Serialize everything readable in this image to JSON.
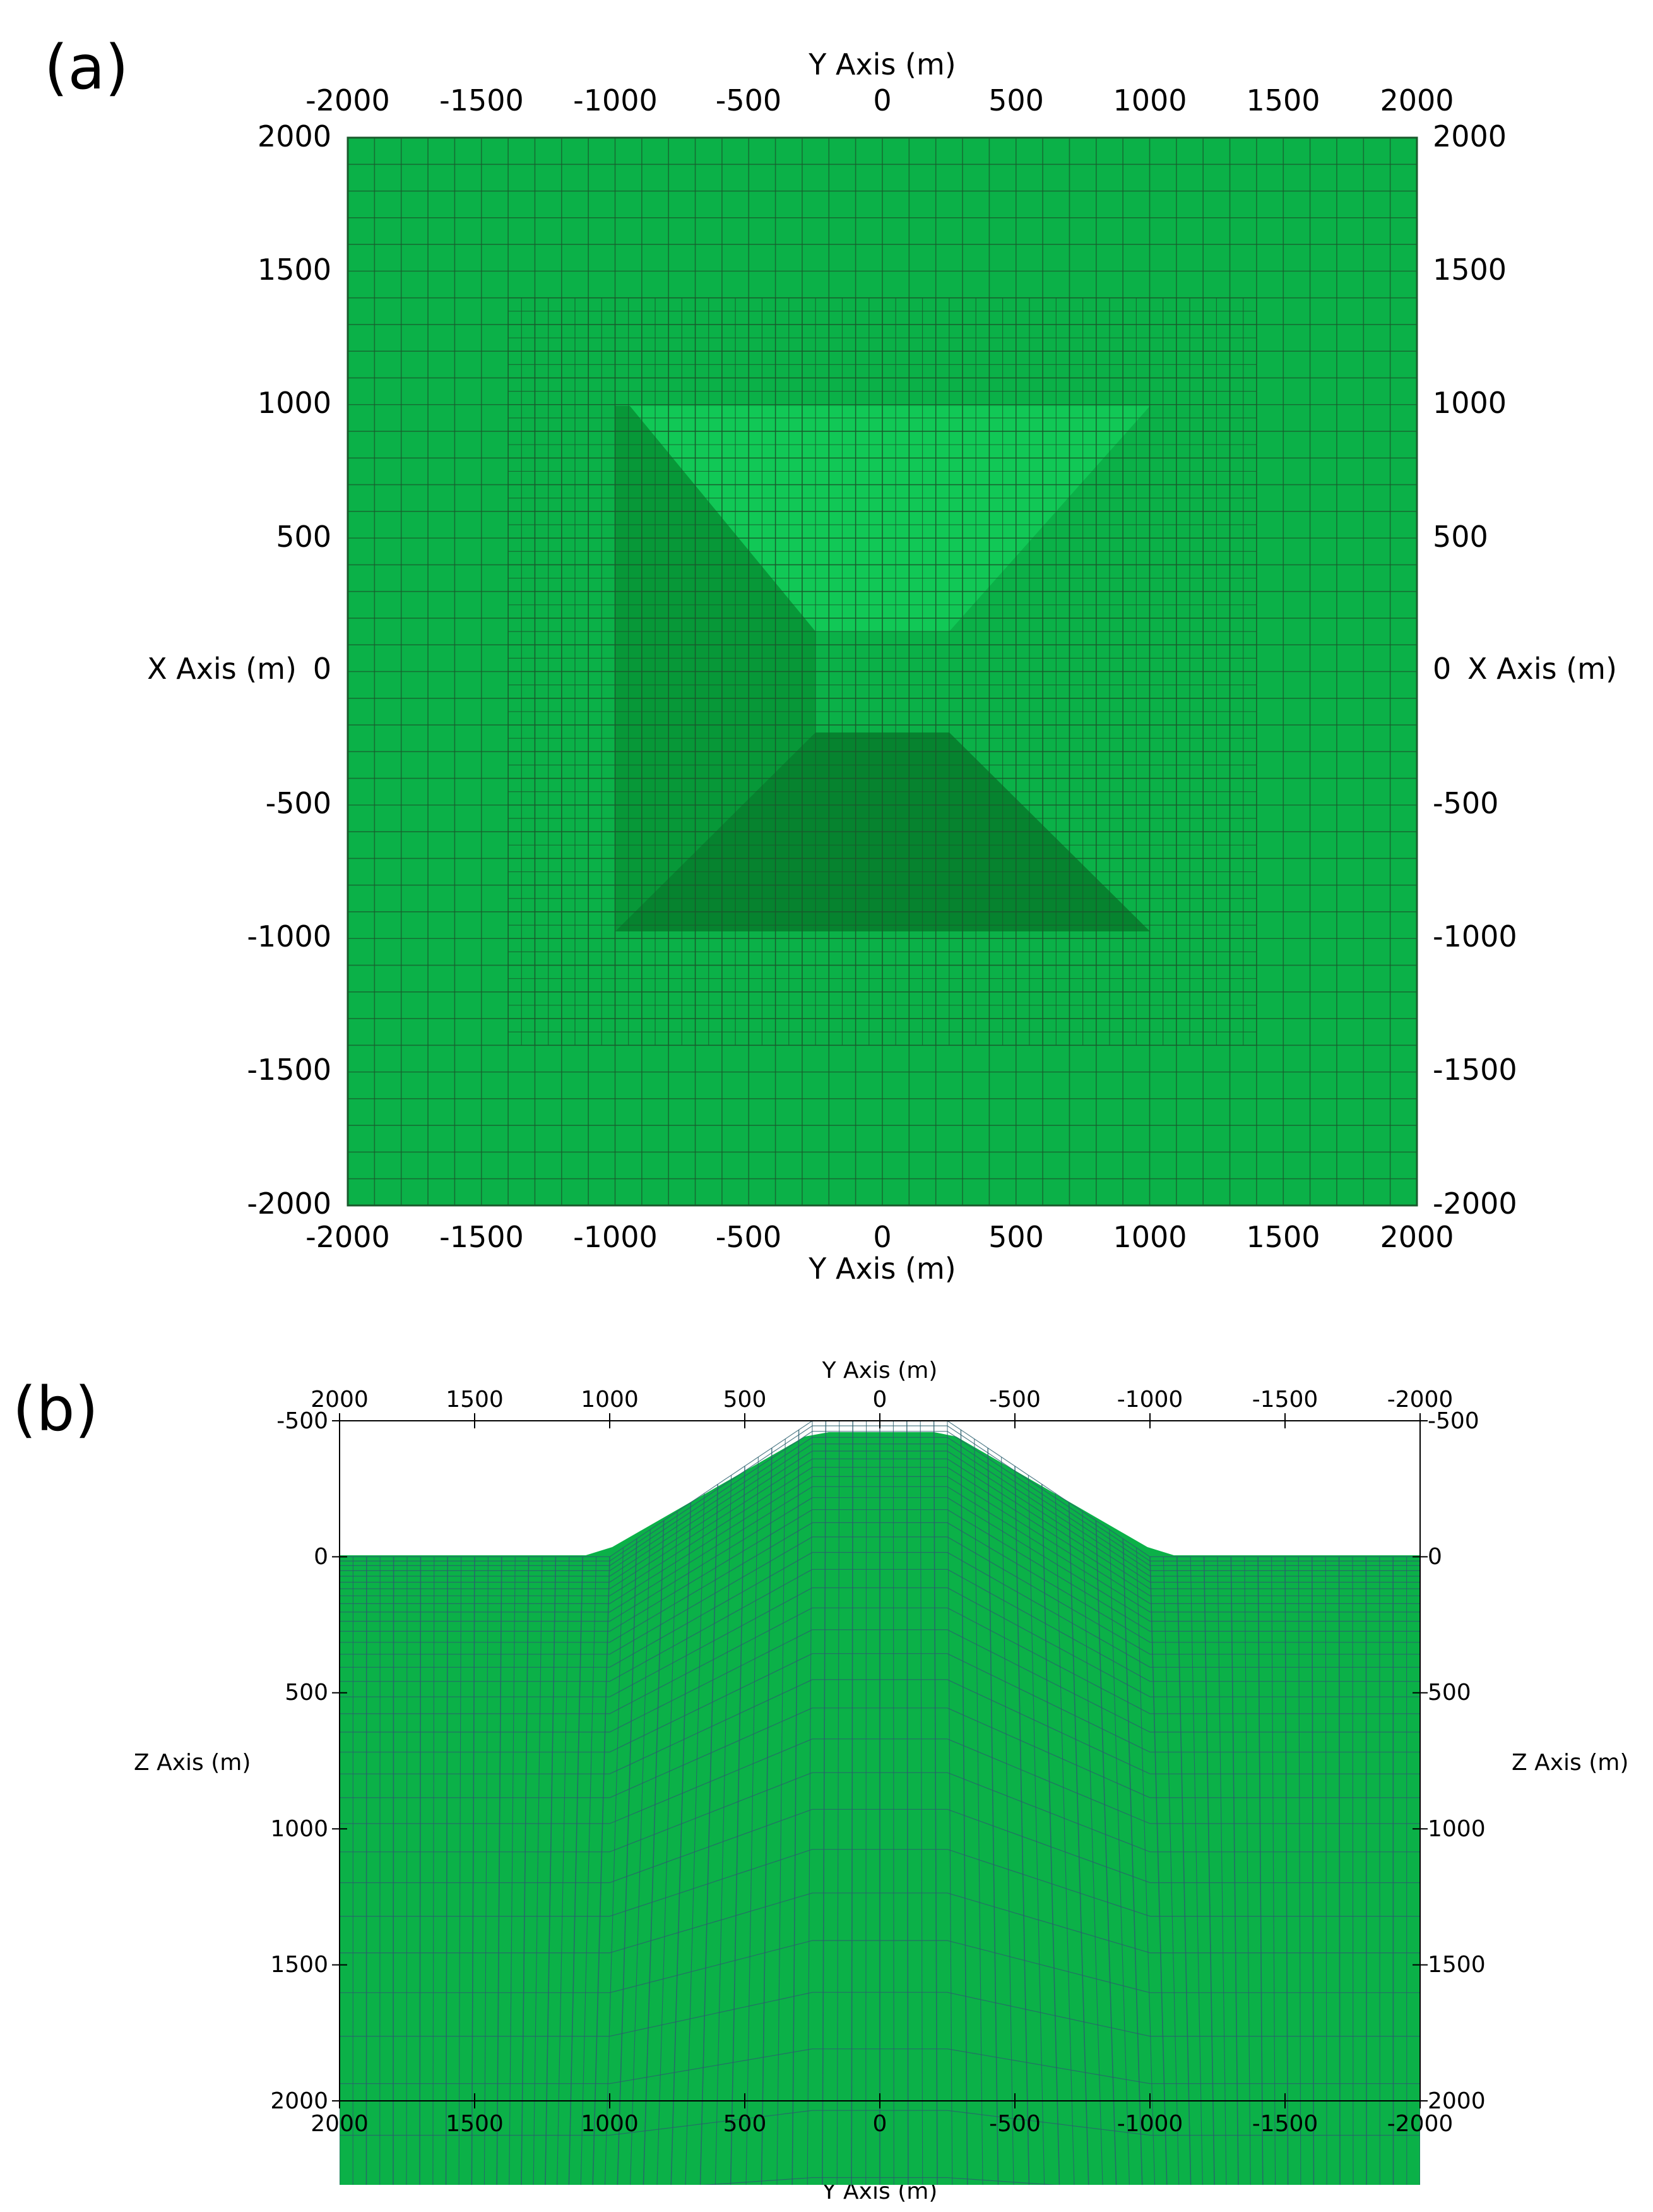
{
  "colors": {
    "mesh_fill": "#0bb148",
    "mesh_line": "#1a5a2c",
    "lighter_region": "#11c856",
    "darker_region": "#079838",
    "darkest_region": "#06832f",
    "sideview_line": "#2a5f6e",
    "axis": "#000000"
  },
  "panel_a": {
    "label": "(a)",
    "top_axis_title": "Y Axis (m)",
    "bottom_axis_title": "Y Axis (m)",
    "left_axis_title": "X Axis (m)",
    "right_axis_title": "X Axis (m)",
    "y_ticks": [
      "-2000",
      "-1500",
      "-1000",
      "-500",
      "0",
      "500",
      "1000",
      "1500",
      "2000"
    ],
    "x_ticks_top_to_bottom": [
      "2000",
      "1500",
      "1000",
      "500",
      "0",
      "-500",
      "-1000",
      "-1500",
      "-2000"
    ],
    "y_range": [
      -2000,
      2000
    ],
    "x_range": [
      -2000,
      2000
    ],
    "refined_zone": {
      "y": [
        -1400,
        1400
      ],
      "x": [
        -1400,
        1400
      ]
    },
    "upper_triangle": {
      "x_top": 1000,
      "x_bottom": 250,
      "y_left_top": -900,
      "y_right_top": 1000,
      "y_bottom": [
        -250,
        250
      ]
    },
    "lower_trapezoid": {
      "x_top": -250,
      "x_bottom": -1000,
      "y_top": [
        -250,
        250
      ],
      "y_bottom": [
        -1000,
        1000
      ]
    }
  },
  "panel_b": {
    "label": "(b)",
    "top_axis_title": "Y Axis (m)",
    "bottom_axis_title": "Y Axis (m)",
    "left_axis_title": "Z Axis (m)",
    "right_axis_title": "Z Axis (m)",
    "y_ticks_left_to_right": [
      "2000",
      "1500",
      "1000",
      "500",
      "0",
      "-500",
      "-1000",
      "-1500",
      "-2000"
    ],
    "z_ticks_top_to_bottom": [
      "-500",
      "0",
      "500",
      "1000",
      "1500",
      "2000"
    ],
    "y_range": [
      2000,
      -2000
    ],
    "z_range": [
      -500,
      2000
    ],
    "topography": {
      "y": [
        2000,
        1000,
        250,
        -250,
        -1000,
        -2000
      ],
      "z": [
        0,
        0,
        -500,
        -500,
        0,
        0
      ]
    }
  }
}
